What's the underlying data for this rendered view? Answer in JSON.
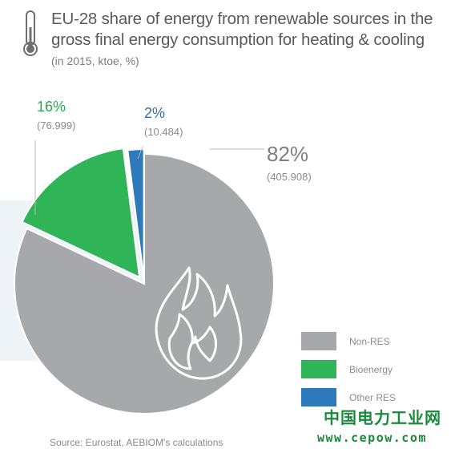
{
  "title": "EU-28 share of energy from renewable sources in the gross final energy consumption for heating & cooling",
  "subtitle": "(in 2015, ktoe, %)",
  "icons": {
    "thermometer": "thermometer-icon",
    "flame": "flame-icon"
  },
  "colors": {
    "non_res": "#a7a8ab",
    "bioenergy": "#2fb457",
    "other_res": "#2e79b9",
    "non_res_label": "#7d7e80",
    "bioenergy_label": "#2aa852",
    "other_res_label": "#2f6fa6"
  },
  "chart_data": {
    "type": "pie",
    "title": "EU-28 share of energy from renewable sources in the gross final energy consumption for heating & cooling",
    "slices": [
      {
        "name": "Non-RES",
        "percent": "82%",
        "value": "(405.908)",
        "share": 82
      },
      {
        "name": "Bioenergy",
        "percent": "16%",
        "value": "(76.999)",
        "share": 16
      },
      {
        "name": "Other RES",
        "percent": "2%",
        "value": "(10.484)",
        "share": 2
      }
    ],
    "legend": [
      "Non-RES",
      "Bioenergy",
      "Other RES"
    ],
    "legend_placement": "bottom-right"
  },
  "source": "Source: Eurostat, AEBIOM's calculations",
  "watermark": {
    "line1": "中国电力工业网",
    "line2": "www.cepow.com"
  }
}
